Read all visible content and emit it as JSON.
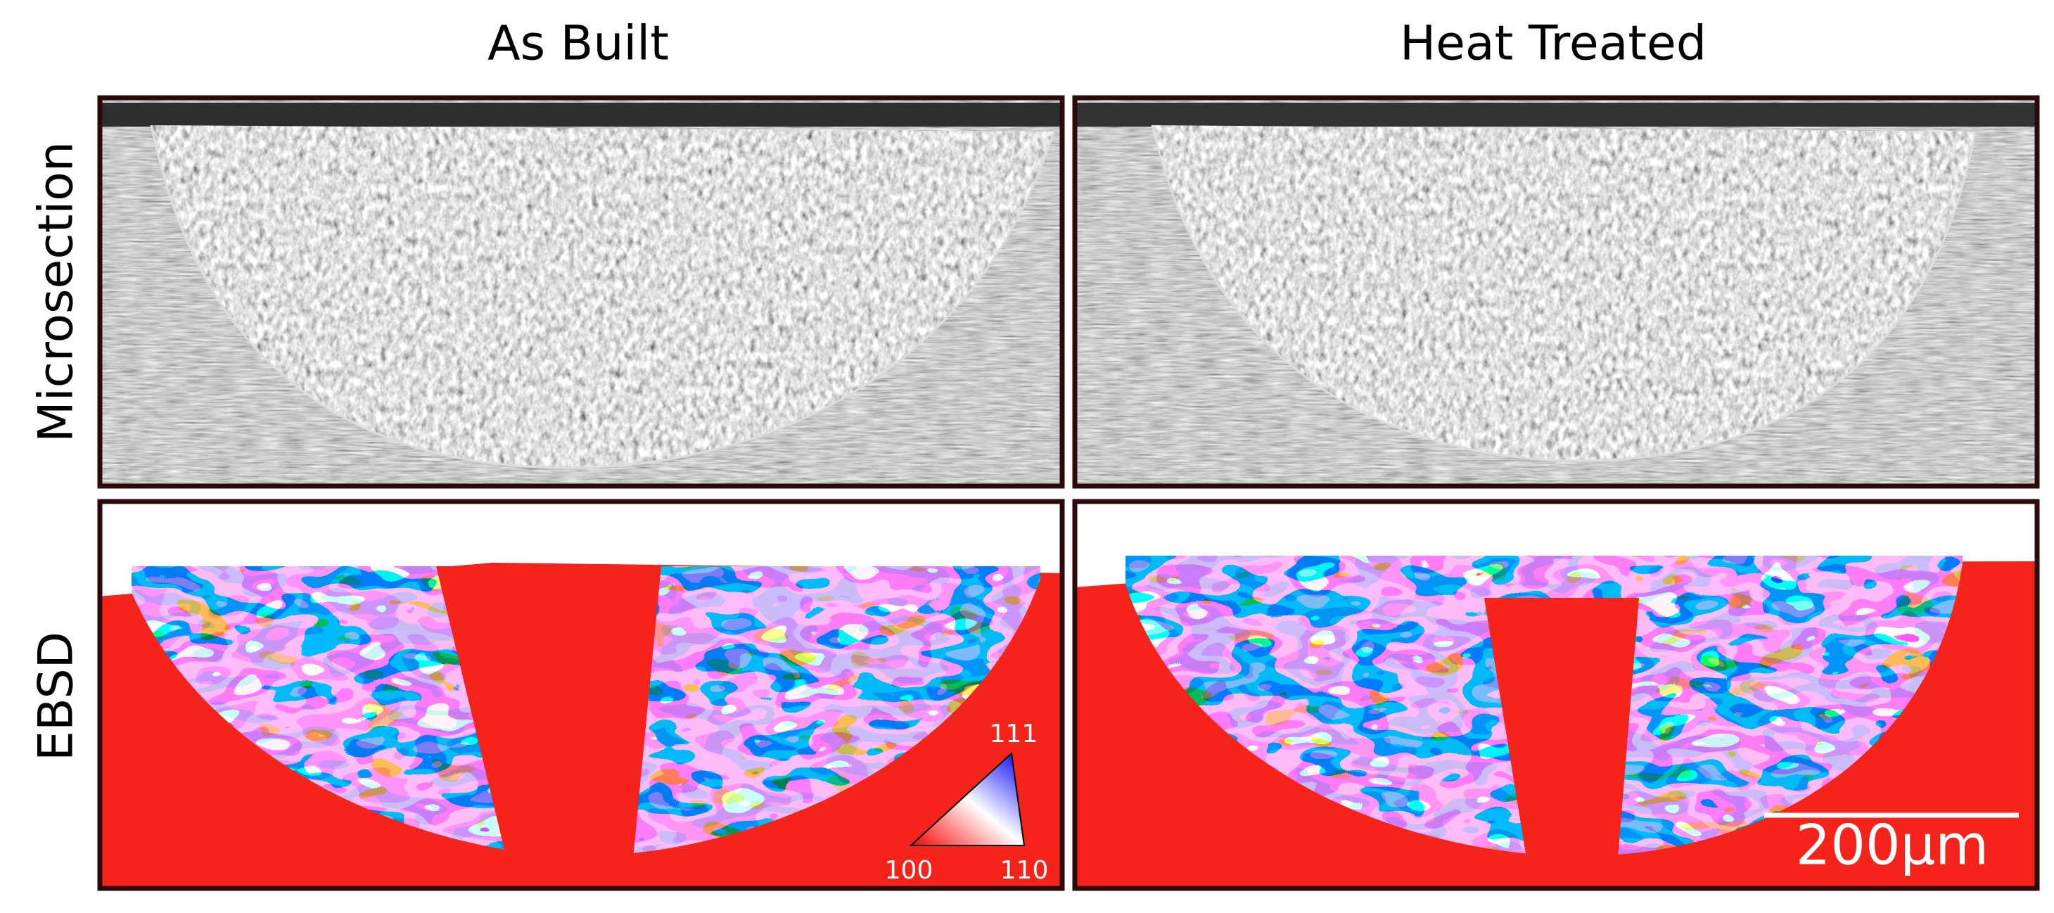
{
  "column_titles": [
    "As Built",
    "Heat Treated"
  ],
  "row_labels": [
    "Microsection",
    "EBSD"
  ],
  "ipf_key": {
    "top": "111",
    "left": "100",
    "right": "110"
  },
  "scale_bar": "200μm"
}
